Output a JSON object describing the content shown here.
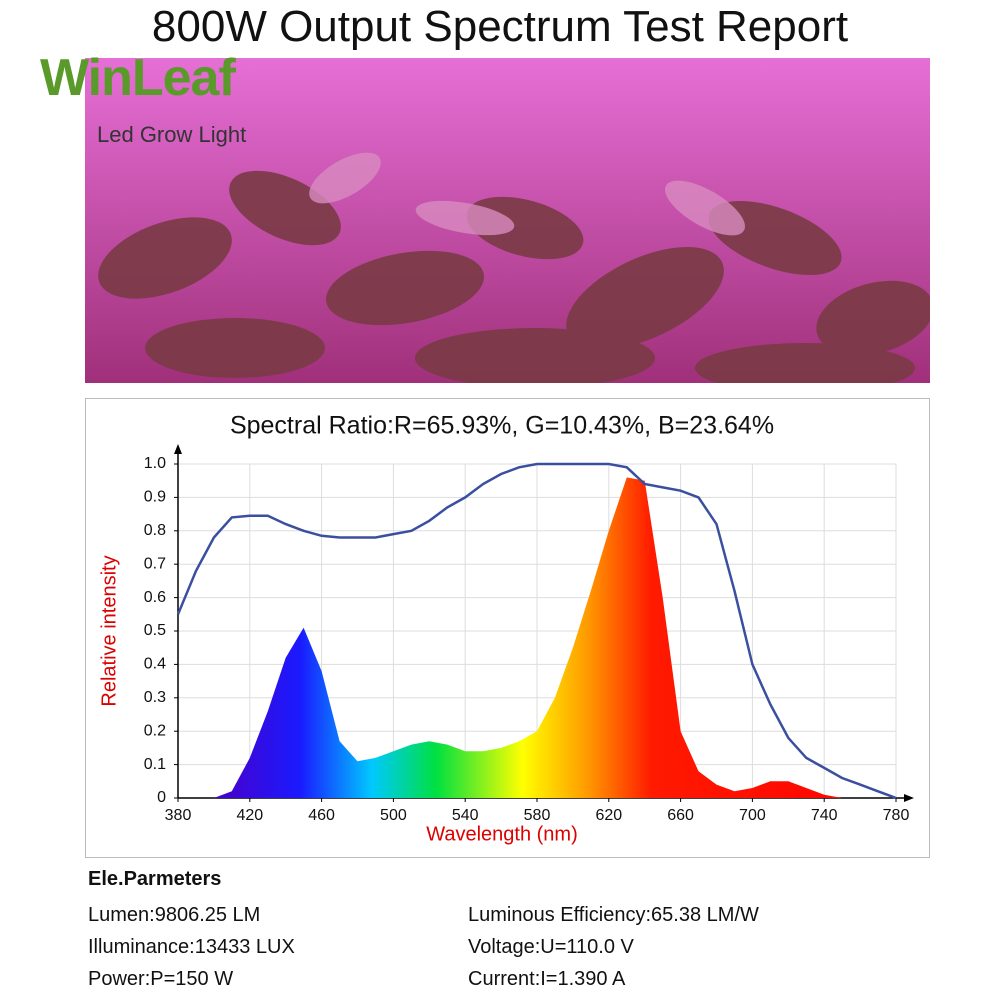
{
  "title": "800W Output Spectrum Test Report",
  "brand": "WinLeaf",
  "tagline": "Led Grow Light",
  "chart_data": {
    "type": "line",
    "title": "Spectral Ratio:R=65.93%, G=10.43%, B=23.64%",
    "xlabel": "Wavelength (nm)",
    "ylabel": "Relative intensity",
    "x": [
      380,
      390,
      400,
      410,
      420,
      430,
      440,
      450,
      460,
      470,
      480,
      490,
      500,
      510,
      520,
      530,
      540,
      550,
      560,
      570,
      580,
      590,
      600,
      610,
      620,
      630,
      640,
      650,
      660,
      670,
      680,
      690,
      700,
      710,
      720,
      730,
      740,
      750,
      760,
      770,
      780
    ],
    "series": [
      {
        "fill": "spectrum",
        "values": [
          0,
          0,
          0,
          0.02,
          0.12,
          0.26,
          0.42,
          0.51,
          0.38,
          0.17,
          0.11,
          0.12,
          0.14,
          0.16,
          0.17,
          0.16,
          0.14,
          0.14,
          0.15,
          0.17,
          0.2,
          0.3,
          0.45,
          0.62,
          0.8,
          0.96,
          0.95,
          0.6,
          0.2,
          0.08,
          0.04,
          0.02,
          0.03,
          0.05,
          0.05,
          0.03,
          0.01,
          0,
          0,
          0,
          0
        ]
      },
      {
        "color": "#3b4fa0",
        "values": [
          0.55,
          0.68,
          0.78,
          0.84,
          0.845,
          0.845,
          0.82,
          0.8,
          0.785,
          0.78,
          0.78,
          0.78,
          0.79,
          0.8,
          0.83,
          0.87,
          0.9,
          0.94,
          0.97,
          0.99,
          1.0,
          1.0,
          1.0,
          1.0,
          1.0,
          0.99,
          0.94,
          0.93,
          0.92,
          0.9,
          0.82,
          0.62,
          0.4,
          0.28,
          0.18,
          0.12,
          0.09,
          0.06,
          0.04,
          0.02,
          0
        ]
      }
    ],
    "xlim": [
      380,
      780
    ],
    "xticks": [
      380,
      420,
      460,
      500,
      540,
      580,
      620,
      660,
      700,
      740,
      780
    ],
    "ylim": [
      0,
      1
    ],
    "yticks": [
      0,
      0.1,
      0.2,
      0.3,
      0.4,
      0.5,
      0.6,
      0.7,
      0.8,
      0.9,
      {
        "value": 1,
        "label": "1.0"
      }
    ],
    "grid": true
  },
  "parameters": {
    "heading": "Ele.Parmeters",
    "left": [
      "Lumen:9806.25 LM",
      "Illuminance:13433 LUX",
      "Power:P=150 W"
    ],
    "right": [
      "Luminous Efficiency:65.38 LM/W",
      "Voltage:U=110.0 V",
      "Current:I=1.390 A"
    ]
  }
}
